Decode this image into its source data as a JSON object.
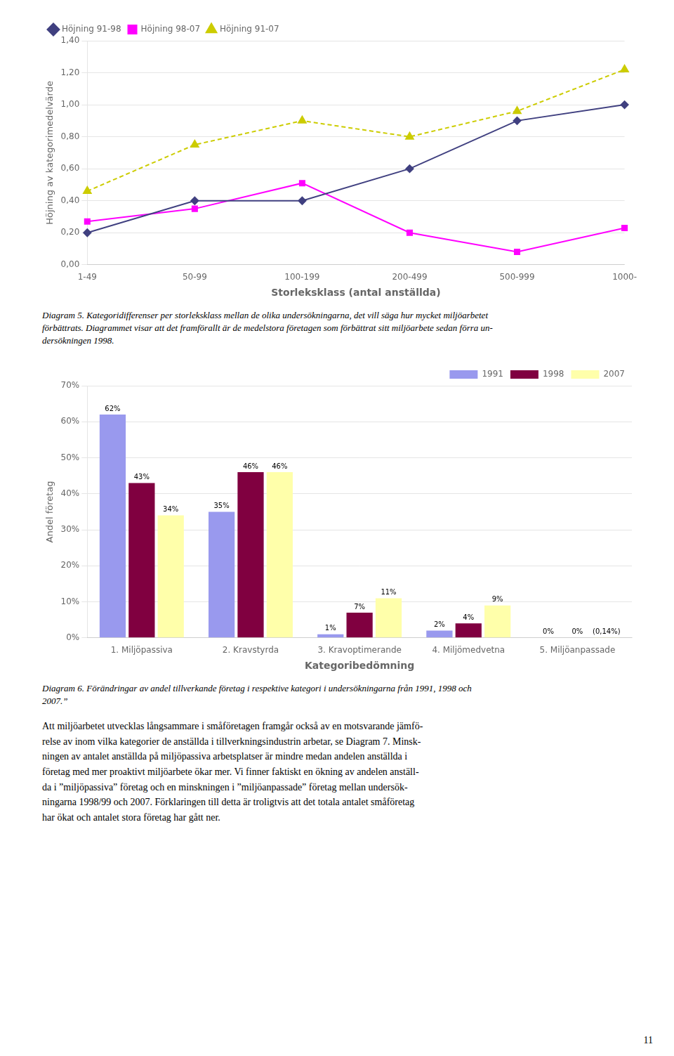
{
  "chart_data": [
    {
      "type": "line",
      "categories": [
        "1-49",
        "50-99",
        "100-199",
        "200-499",
        "500-999",
        "1000-"
      ],
      "series": [
        {
          "name": "Höjning 91-98",
          "color": "#404080",
          "marker": "diamond",
          "line_style": "solid",
          "values": [
            0.2,
            0.4,
            0.4,
            0.6,
            0.9,
            1.0
          ]
        },
        {
          "name": "Höjning 98-07",
          "color": "#FF00FF",
          "marker": "square",
          "line_style": "solid",
          "values": [
            0.27,
            0.35,
            0.51,
            0.2,
            0.08,
            0.23
          ]
        },
        {
          "name": "Höjning 91-07",
          "color": "#CCCC00",
          "marker": "triangle",
          "line_style": "dashed",
          "values": [
            0.46,
            0.75,
            0.9,
            0.8,
            0.96,
            1.22
          ]
        }
      ],
      "xlabel": "Storleksklass (antal anställda)",
      "ylabel": "Höjning av kategorimedelvärde",
      "ylim": [
        0.0,
        1.4
      ],
      "yticks": [
        {
          "value": 0.0,
          "label": "0,00"
        },
        {
          "value": 0.2,
          "label": "0,20"
        },
        {
          "value": 0.4,
          "label": "0,40"
        },
        {
          "value": 0.6,
          "label": "0,60"
        },
        {
          "value": 0.8,
          "label": "0,80"
        },
        {
          "value": 1.0,
          "label": "1,00"
        },
        {
          "value": 1.2,
          "label": "1,20"
        },
        {
          "value": 1.4,
          "label": "1,40"
        }
      ],
      "grid": true,
      "legend": "top-left",
      "caption": [
        "Diagram 5. Kategoridifferenser per storleksklass mellan de olika undersökningarna, det vill säga hur mycket miljöarbetet",
        "förbättrats. Diagrammet visar att det framförallt är de medelstora företagen som förbättrat sitt miljöarbete sedan förra un-",
        "dersökningen 1998."
      ]
    },
    {
      "type": "bar",
      "categories": [
        "1. Miljöpassiva",
        "2. Kravstyrda",
        "3. Kravoptimerande",
        "4. Miljömedvetna",
        "5. Miljöanpassade"
      ],
      "series": [
        {
          "name": "1991",
          "color": "#9999EE",
          "values": [
            0.62,
            0.35,
            0.01,
            0.02,
            0.0
          ],
          "value_labels": [
            "62%",
            "35%",
            "1%",
            "2%",
            "0%"
          ]
        },
        {
          "name": "1998",
          "color": "#800040",
          "values": [
            0.43,
            0.46,
            0.07,
            0.04,
            0.0
          ],
          "value_labels": [
            "43%",
            "46%",
            "7%",
            "4%",
            "0%"
          ]
        },
        {
          "name": "2007",
          "color": "#FFFFAA",
          "values": [
            0.34,
            0.46,
            0.11,
            0.09,
            0.0014
          ],
          "value_labels": [
            "34%",
            "46%",
            "11%",
            "9%",
            "(0,14%)"
          ]
        }
      ],
      "xlabel": "Kategoribedömning",
      "ylabel": "Andel företag",
      "ylim": [
        0.0,
        0.7
      ],
      "yticks": [
        {
          "value": 0.0,
          "label": "0%"
        },
        {
          "value": 0.1,
          "label": "10%"
        },
        {
          "value": 0.2,
          "label": "20%"
        },
        {
          "value": 0.3,
          "label": "30%"
        },
        {
          "value": 0.4,
          "label": "40%"
        },
        {
          "value": 0.5,
          "label": "50%"
        },
        {
          "value": 0.6,
          "label": "60%"
        },
        {
          "value": 0.7,
          "label": "70%"
        }
      ],
      "grid": true,
      "legend": "top-right",
      "data_labels": true,
      "caption": [
        "Diagram 6.  Förändringar av andel tillverkande företag i respektive kategori i undersökningarna från 1991, 1998 och",
        "2007.”"
      ]
    }
  ],
  "body_text": [
    "Att miljöarbetet utvecklas långsammare i småföretagen framgår också av en motsvarande jämfö-",
    "relse av inom vilka kategorier de anställda i tillverkningsindustrin arbetar, se Diagram 7. Minsk-",
    "ningen av antalet anställda på miljöpassiva arbetsplatser är mindre medan andelen anställda i",
    "företag med mer proaktivt miljöarbete ökar mer. Vi finner faktiskt en ökning av andelen anställ-",
    "da i ”miljöpassiva” företag och en minskningen i ”miljöanpassade” företag mellan undersök-",
    "ningarna 1998/99 och 2007. Förklaringen till detta är troligtvis att det totala antalet småföretag",
    "har ökat och antalet stora företag har gått ner."
  ],
  "page_number": "11"
}
